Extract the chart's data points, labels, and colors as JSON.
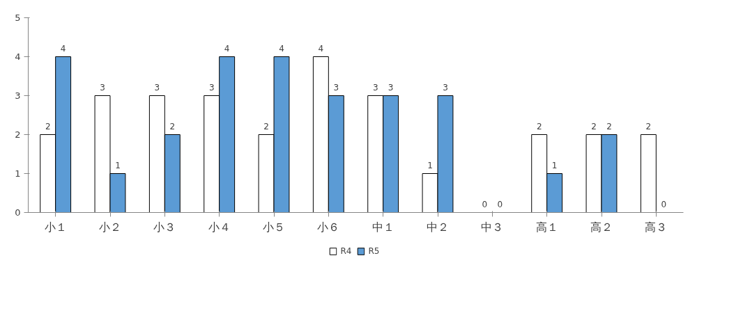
{
  "chart_data": {
    "type": "bar",
    "categories": [
      "小１",
      "小２",
      "小３",
      "小４",
      "小５",
      "小６",
      "中１",
      "中２",
      "中３",
      "高１",
      "高２",
      "高３"
    ],
    "series": [
      {
        "name": "R4",
        "color": "#ffffff",
        "values": [
          2,
          3,
          3,
          3,
          2,
          4,
          3,
          1,
          0,
          2,
          2,
          2
        ]
      },
      {
        "name": "R5",
        "color": "#5b9bd5",
        "values": [
          4,
          1,
          2,
          4,
          4,
          3,
          3,
          3,
          0,
          1,
          2,
          0
        ]
      }
    ],
    "ylim": [
      0,
      5
    ],
    "yticks": [
      0,
      1,
      2,
      3,
      4,
      5
    ],
    "grid": false,
    "legend": "bottom",
    "data_labels": true
  }
}
